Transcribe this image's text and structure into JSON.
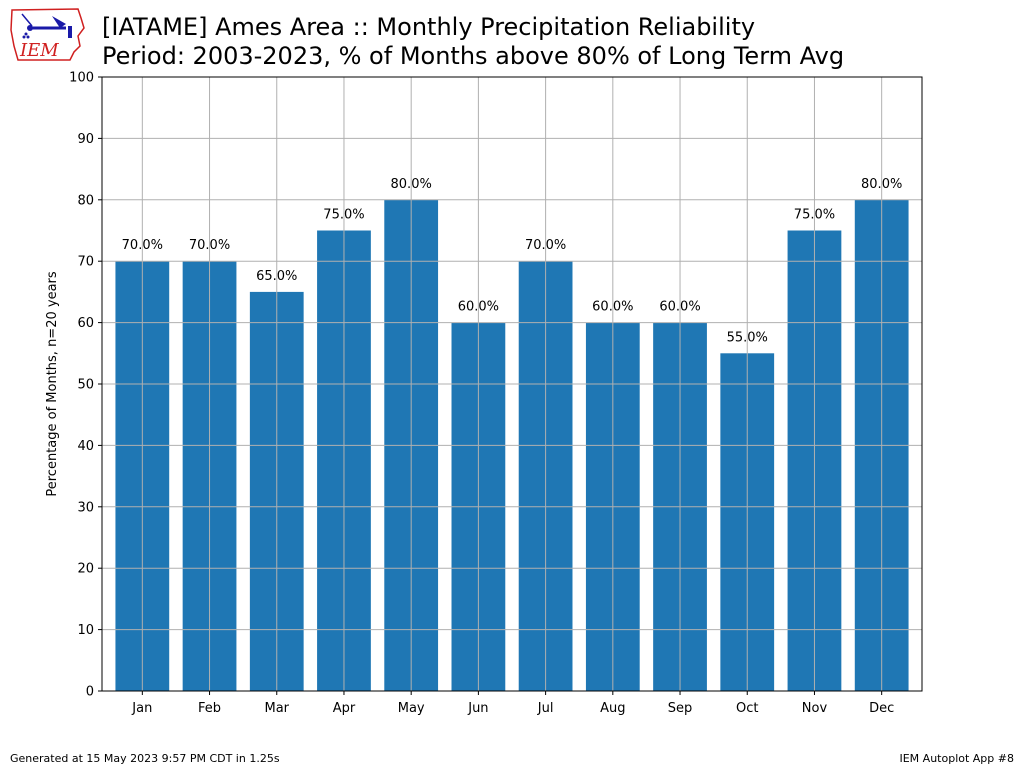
{
  "header": {
    "title_line1": "[IATAME] Ames Area :: Monthly Precipitation Reliability",
    "title_line2": "Period: 2003-2023, % of Months above 80% of Long Term Avg",
    "logo_text": "IEM"
  },
  "footer": {
    "left": "Generated at 15 May 2023 9:57 PM CDT in 1.25s",
    "right": "IEM Autoplot App #8"
  },
  "colors": {
    "bar": "#1f77b4",
    "grid": "#b0b0b0",
    "logo_red": "#d02020",
    "logo_blue": "#1a1aa8"
  },
  "chart_data": {
    "type": "bar",
    "title": "[IATAME] Ames Area :: Monthly Precipitation Reliability",
    "subtitle": "Period: 2003-2023, % of Months above 80% of Long Term Avg",
    "categories": [
      "Jan",
      "Feb",
      "Mar",
      "Apr",
      "May",
      "Jun",
      "Jul",
      "Aug",
      "Sep",
      "Oct",
      "Nov",
      "Dec"
    ],
    "values": [
      70,
      70,
      65,
      75,
      80,
      60,
      70,
      60,
      60,
      55,
      75,
      80
    ],
    "data_labels": [
      "70.0%",
      "70.0%",
      "65.0%",
      "75.0%",
      "80.0%",
      "60.0%",
      "70.0%",
      "60.0%",
      "60.0%",
      "55.0%",
      "75.0%",
      "80.0%"
    ],
    "xlabel": "",
    "ylabel": "Percentage of Months, n=20 years",
    "ylim": [
      0,
      100
    ],
    "yticks": [
      "0",
      "10",
      "20",
      "30",
      "40",
      "50",
      "60",
      "70",
      "80",
      "90",
      "100"
    ],
    "grid": true,
    "legend": "none"
  }
}
